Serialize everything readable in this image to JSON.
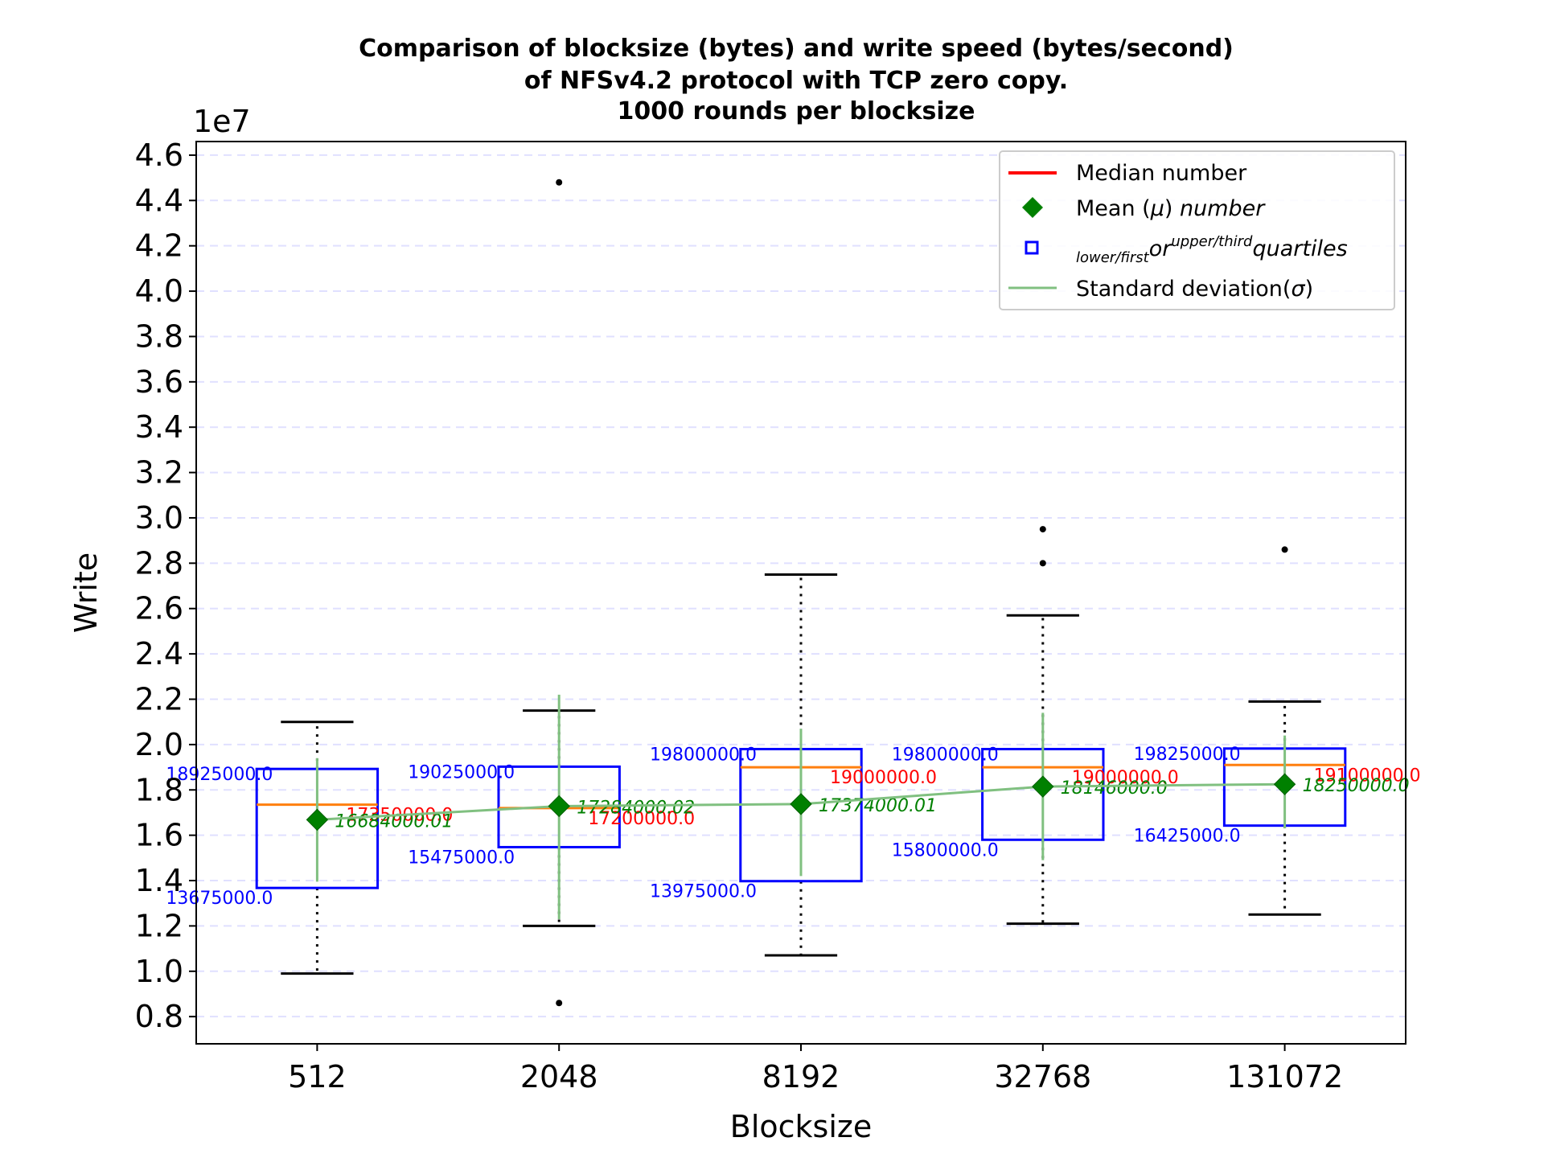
{
  "chart_data": {
    "type": "box",
    "title_lines": [
      "Comparison of blocksize (bytes) and write speed (bytes/second)",
      "of NFSv4.2 protocol with TCP zero copy.",
      "1000 rounds per blocksize"
    ],
    "xlabel": "Blocksize",
    "ylabel": "Write",
    "y_offset_label": "1e7",
    "ylim": [
      0.68,
      4.66
    ],
    "y_scale_multiplier": 10000000,
    "y_ticks": [
      "0.8",
      "1.0",
      "1.2",
      "1.4",
      "1.6",
      "1.8",
      "2.0",
      "2.2",
      "2.4",
      "2.6",
      "2.8",
      "3.0",
      "3.2",
      "3.4",
      "3.6",
      "3.8",
      "4.0",
      "4.2",
      "4.4",
      "4.6"
    ],
    "grid": "horizontal dashed",
    "legend_position": "upper right",
    "categories": [
      "512",
      "2048",
      "8192",
      "32768",
      "131072"
    ],
    "boxes": [
      {
        "category": "512",
        "q1": 13675000.0,
        "q3": 18925000.0,
        "median": 17350000.0,
        "mean": 16684000.01,
        "whisker_low": 9900000,
        "whisker_high": 21000000,
        "std_low": 13950000,
        "std_high": 19400000,
        "outliers": [],
        "q1_label": "13675000.0",
        "q3_label": "18925000.0",
        "median_label": "17350000.0",
        "mean_label": "16684000.01"
      },
      {
        "category": "2048",
        "q1": 15475000.0,
        "q3": 19025000.0,
        "median": 17200000.0,
        "mean": 17284000.02,
        "whisker_low": 12000000,
        "whisker_high": 21500000,
        "std_low": 12300000,
        "std_high": 22200000,
        "outliers": [
          44800000,
          8600000
        ],
        "q1_label": "15475000.0",
        "q3_label": "19025000.0",
        "median_label": "17200000.0",
        "mean_label": "17284000.02"
      },
      {
        "category": "8192",
        "q1": 13975000.0,
        "q3": 19800000.0,
        "median": 19000000.0,
        "mean": 17374000.01,
        "whisker_low": 10700000,
        "whisker_high": 27500000,
        "std_low": 14200000,
        "std_high": 20700000,
        "outliers": [],
        "q1_label": "13975000.0",
        "q3_label": "19800000.0",
        "median_label": "19000000.0",
        "mean_label": "17374000.01"
      },
      {
        "category": "32768",
        "q1": 15800000.0,
        "q3": 19800000.0,
        "median": 19000000.0,
        "mean": 18146000.01,
        "whisker_low": 12100000,
        "whisker_high": 25700000,
        "std_low": 14900000,
        "std_high": 21400000,
        "outliers": [
          29500000,
          28000000
        ],
        "q1_label": "15800000.0",
        "q3_label": "19800000.0",
        "median_label": "19000000.0",
        "mean_label": "18146000.0"
      },
      {
        "category": "131072",
        "q1": 16425000.0,
        "q3": 19825000.0,
        "median": 19100000.0,
        "mean": 18250000.0,
        "whisker_low": 12500000,
        "whisker_high": 21900000,
        "std_low": 16300000,
        "std_high": 20400000,
        "outliers": [
          28600000
        ],
        "q1_label": "16425000.0",
        "q3_label": "19825000.0",
        "median_label": "19100000.0",
        "mean_label": "18250000.0"
      }
    ],
    "legend": [
      {
        "label": "Median number",
        "kind": "line",
        "color": "#ff0000"
      },
      {
        "label": "Mean (μ) number",
        "kind": "diamond",
        "color": "#008000"
      },
      {
        "label": "lower/first or upper/third quartiles",
        "kind": "square",
        "color": "#0000ff"
      },
      {
        "label": "Standard deviation(σ)",
        "kind": "line",
        "color": "#80c080"
      }
    ],
    "legend_parts": {
      "mean_prefix": "Mean (",
      "mean_mu": "μ",
      "mean_suffix": ") ",
      "mean_number": "number",
      "quart_sub1": "lower/first",
      "quart_or": "or",
      "quart_sup": "upper/third",
      "quart_word": "quartiles",
      "std_prefix": "Standard deviation(",
      "std_sigma": "σ",
      "std_suffix": ")"
    },
    "colors": {
      "box": "#0000ff",
      "median": "#ff7f0e",
      "median_label": "#ff0000",
      "mean": "#008000",
      "std": "#80c080",
      "grid": "#e0e0ff",
      "whisker": "#000000"
    }
  }
}
